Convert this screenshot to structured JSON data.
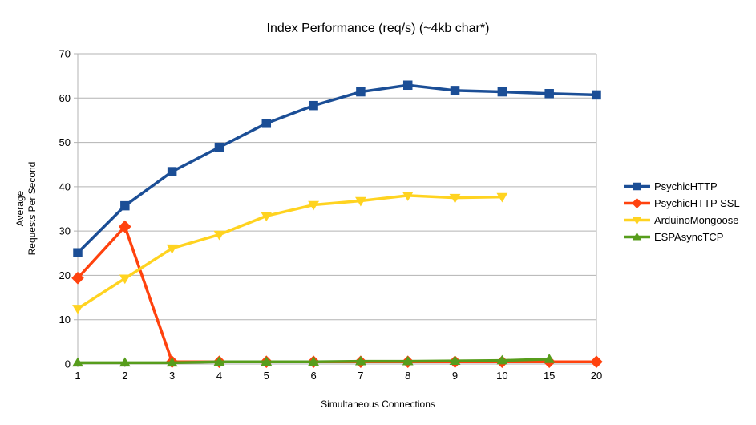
{
  "chart_data": {
    "type": "line",
    "title": "Index Performance (req/s) (~4kb char*)",
    "xlabel": "Simultaneous Connections",
    "ylabel": "Average\nRequests Per Second",
    "categories": [
      "1",
      "2",
      "3",
      "4",
      "5",
      "6",
      "7",
      "8",
      "9",
      "10",
      "15",
      "20"
    ],
    "y_ticks": [
      0,
      10,
      20,
      30,
      40,
      50,
      60,
      70
    ],
    "ylim": [
      0,
      70
    ],
    "grid": "horizontal",
    "legend_position": "right",
    "axis_color": "#b3b3b3",
    "text_color": "#000000",
    "background_color": "#ffffff",
    "series": [
      {
        "name": "PsychicHTTP",
        "color": "#1b4e96",
        "marker": "square",
        "values": [
          25.1,
          35.7,
          43.4,
          48.9,
          54.3,
          58.3,
          61.4,
          62.9,
          61.7,
          61.4,
          61.0,
          60.7
        ]
      },
      {
        "name": "PsychicHTTP SSL",
        "color": "#ff420e",
        "marker": "diamond",
        "values": [
          19.4,
          31.0,
          0.5,
          0.5,
          0.5,
          0.5,
          0.5,
          0.5,
          0.5,
          0.5,
          0.5,
          0.5
        ]
      },
      {
        "name": "ArduinoMongoose",
        "color": "#ffd320",
        "marker": "triangle-down",
        "values": [
          12.5,
          19.3,
          26.1,
          29.2,
          33.4,
          35.9,
          36.8,
          38.0,
          37.5,
          37.7,
          null,
          null
        ]
      },
      {
        "name": "ESPAsyncTCP",
        "color": "#579d1c",
        "marker": "triangle-up",
        "values": [
          0.3,
          0.3,
          0.3,
          0.5,
          0.5,
          0.5,
          0.6,
          0.6,
          0.7,
          0.8,
          1.1,
          null
        ]
      }
    ]
  }
}
